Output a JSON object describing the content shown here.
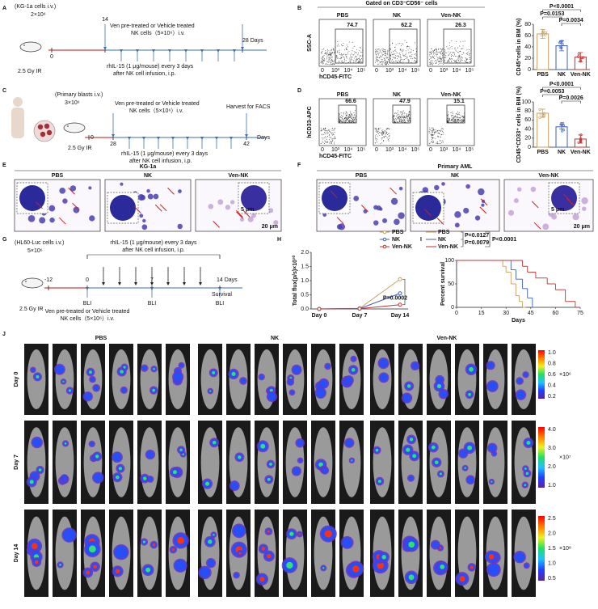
{
  "A": {
    "label": "A",
    "cells": "(KG-1a cells i.v.)",
    "dose": "2×10⁶",
    "irr": "2.5 Gy IR",
    "days": [
      "0",
      "14",
      "28 Days"
    ],
    "treat": [
      "Ven pre-treated or Vehicle treated",
      "NK cells（5×10⁶）i.v."
    ],
    "il15": [
      "rhIL-15 (1 μg/mouse) every 3 days",
      "after NK cell infusion, i.p."
    ]
  },
  "B": {
    "label": "B",
    "gate": "Gated on CD3⁻CD56⁻ cells",
    "groups": [
      "PBS",
      "NK",
      "Ven-NK"
    ],
    "percents": [
      74.7,
      62.2,
      26.3
    ],
    "xlabel": "hCD45-FITC",
    "ylabel": "SSC-A",
    "flow_ticks": [
      "0",
      "10³",
      "10⁴",
      "10⁵"
    ],
    "chart": {
      "type": "bar",
      "ylabel": "CD45⁺cells in BM (%)",
      "categories": [
        "PBS",
        "NK",
        "Ven-NK"
      ],
      "values": [
        63,
        42,
        22
      ],
      "errors": [
        8,
        9,
        8
      ],
      "colors": [
        "#c8a060",
        "#3b5fbf",
        "#c03030"
      ],
      "ylim": [
        0,
        80
      ],
      "yticks": [
        0,
        20,
        40,
        60,
        80
      ],
      "pvalues": [
        "P<0.0001",
        "P=0.0153",
        "P=0.0034"
      ]
    }
  },
  "C": {
    "label": "C",
    "cells": "(Primary blasts i.v.)",
    "dose": "3×10⁶",
    "irr": "2.5 Gy IR",
    "days": [
      "0",
      "28",
      "42",
      "Days"
    ],
    "treat": [
      "Ven pre-treated or Vehicle treated",
      "NK cells（5×10⁶）i.v."
    ],
    "harvest": "Harvest for FACS",
    "il15": [
      "rhIL-15 (1 μg/mouse) every 3 days",
      "after NK cell infusion, i.p."
    ]
  },
  "D": {
    "label": "D",
    "groups": [
      "PBS",
      "NK",
      "Ven-NK"
    ],
    "percents": [
      66.6,
      47.9,
      15.1
    ],
    "xlabel": "hCD45-FITC",
    "ylabel": "hCD33-APC",
    "flow_ticks": [
      "0",
      "10³",
      "10⁴",
      "10⁵"
    ],
    "chart": {
      "type": "bar",
      "ylabel": "CD45⁺CD33⁺ cells in BM (%)",
      "categories": [
        "PBS",
        "NK",
        "Ven-NK"
      ],
      "values": [
        75,
        45,
        18
      ],
      "errors": [
        9,
        5,
        9
      ],
      "colors": [
        "#c8a060",
        "#3b5fbf",
        "#c03030"
      ],
      "ylim": [
        0,
        100
      ],
      "yticks": [
        0,
        20,
        40,
        60,
        80,
        100
      ],
      "pvalues": [
        "P<0.0001",
        "P=0.0053",
        "P=0.0026"
      ]
    }
  },
  "E": {
    "label": "E",
    "title": "KG-1a",
    "groups": [
      "PBS",
      "NK",
      "Ven-NK"
    ],
    "scale_small": "5 μm",
    "scale_large": "20 μm"
  },
  "F": {
    "label": "F",
    "title": "Primary AML",
    "groups": [
      "PBS",
      "NK",
      "Ven-NK"
    ],
    "scale_small": "5 μm",
    "scale_large": "20 μm"
  },
  "G": {
    "label": "G",
    "cells": "(HL60-Luc cells  i.v.)",
    "dose": "5×10⁶",
    "irr": "2.5 Gy IR",
    "days": [
      "-12",
      "0",
      "7",
      "14 Days"
    ],
    "survival": "Survival",
    "bli": "BLI",
    "treat": [
      "Ven pre-treated or Vehicle treated",
      "NK cells（5×10⁶）i.v."
    ],
    "il15": [
      "rhIL-15 (1 μg/mouse) every 3 days",
      "after NK cell infusion, i.p."
    ]
  },
  "H": {
    "label": "H",
    "chart": {
      "type": "line",
      "ylabel": "Total flux(p/s)×10¹⁰",
      "categories": [
        "Day 0",
        "Day 7",
        "Day 14"
      ],
      "ylim": [
        0,
        2
      ],
      "yticks": [
        {
          "value": 0,
          "label": "0.0"
        },
        {
          "value": 0.5,
          "label": "0.5"
        },
        {
          "value": 1,
          "label": "1.0"
        },
        {
          "value": 1.5,
          "label": "1.5"
        },
        {
          "value": 2,
          "label": "2.0"
        }
      ],
      "series": [
        {
          "name": "PBS",
          "color": "#c8a060",
          "values": [
            0,
            0.02,
            1.05
          ]
        },
        {
          "name": "NK",
          "color": "#3b5fbf",
          "values": [
            0,
            0.01,
            0.55
          ]
        },
        {
          "name": "Ven-NK",
          "color": "#c03030",
          "values": [
            0,
            0.01,
            0.15
          ]
        }
      ],
      "pvalue": "P=0.0002"
    }
  },
  "I": {
    "label": "I",
    "chart": {
      "type": "survival",
      "ylabel": "Percent survival",
      "xlabel": "Days",
      "xlim": [
        0,
        75
      ],
      "xticks": [
        0,
        15,
        30,
        45,
        60,
        75
      ],
      "ylim": [
        0,
        100
      ],
      "yticks": [
        0,
        50,
        100
      ],
      "series": [
        {
          "name": "PBS",
          "color": "#c8a060",
          "x": [
            0,
            28,
            30,
            33,
            36,
            38,
            40
          ],
          "values": [
            100,
            87.5,
            75,
            50,
            25,
            12.5,
            0
          ]
        },
        {
          "name": "NK",
          "color": "#3b5fbf",
          "x": [
            0,
            33,
            36,
            40,
            43,
            46
          ],
          "values": [
            100,
            80,
            60,
            40,
            20,
            0
          ]
        },
        {
          "name": "Ven-NK",
          "color": "#c03030",
          "x": [
            0,
            40,
            43,
            48,
            55,
            60,
            66,
            72
          ],
          "values": [
            100,
            87.5,
            75,
            62.5,
            50,
            37.5,
            12.5,
            0
          ]
        }
      ],
      "pvalues": [
        "P=0.0127",
        "P=0.0079",
        "P<0.0001"
      ]
    }
  },
  "J": {
    "label": "J",
    "groups": [
      "PBS",
      "NK",
      "Ven-NK"
    ],
    "days": [
      "Day 0",
      "Day 7",
      "Day 14"
    ],
    "colorbars": [
      {
        "ticks": [
          "1.0",
          "0.8",
          "0.6",
          "0.4",
          "0.2"
        ],
        "unit": "×10⁶"
      },
      {
        "ticks": [
          "4.0",
          "3.0",
          "2.0",
          "1.0"
        ],
        "unit": "×10⁷"
      },
      {
        "ticks": [
          "2.5",
          "2.0",
          "1.5",
          "1.0",
          "0.5"
        ],
        "unit": "×10⁸"
      }
    ]
  }
}
